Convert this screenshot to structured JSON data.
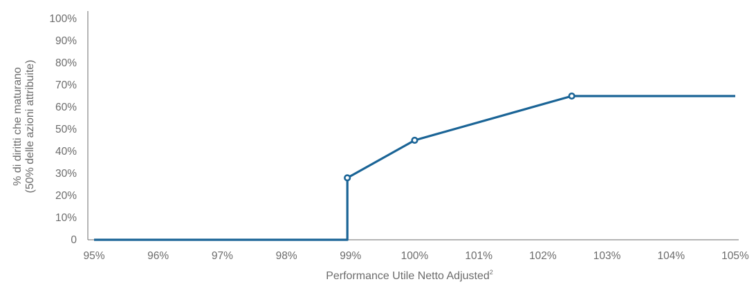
{
  "chart_data": {
    "type": "line",
    "title": "",
    "xlabel": "Performance Utile Netto Adjusted",
    "xlabel_superscript": "2",
    "ylabel_lines": [
      "% di diritti che maturano",
      "(50% delle azioni attribuite)"
    ],
    "x_ticks": [
      "95%",
      "96%",
      "97%",
      "98%",
      "99%",
      "100%",
      "101%",
      "102%",
      "103%",
      "104%",
      "105%"
    ],
    "y_ticks": [
      "0",
      "10%",
      "20%",
      "30%",
      "40%",
      "50%",
      "60%",
      "70%",
      "80%",
      "90%",
      "100%"
    ],
    "xlim": [
      95,
      105
    ],
    "ylim": [
      0,
      100
    ],
    "grid": false,
    "line_color": "#1a6496",
    "series": [
      {
        "points": [
          [
            95,
            0
          ],
          [
            98.95,
            0
          ],
          [
            98.95,
            28
          ],
          [
            100,
            45
          ],
          [
            102.45,
            65
          ],
          [
            105,
            65
          ]
        ],
        "markers": [
          [
            98.95,
            28
          ],
          [
            100,
            45
          ],
          [
            102.45,
            65
          ]
        ]
      }
    ]
  }
}
